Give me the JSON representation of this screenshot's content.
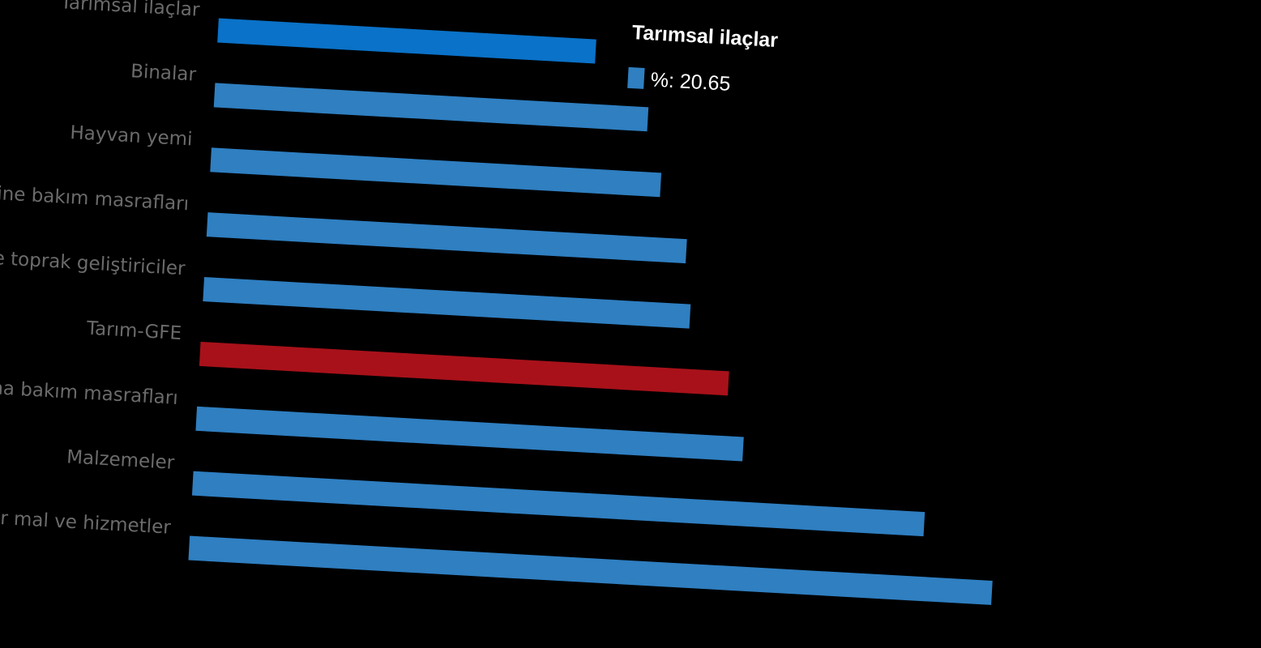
{
  "chart_data": {
    "type": "bar",
    "orientation": "horizontal",
    "categories": [
      "Tarımsal ilaçlar",
      "Binalar",
      "Hayvan yemi",
      "akine bakım masrafları",
      "ve toprak geliştiriciler",
      "Tarım-GFE",
      "Bina bakım masrafları",
      "Malzemeler",
      "ğer mal ve hizmetler"
    ],
    "values": [
      20.65,
      23.7,
      24.6,
      26.2,
      26.6,
      28.9,
      29.9,
      40.0,
      43.9
    ],
    "colors": [
      "#0a72c8",
      "#2f7fc1",
      "#2f7fc1",
      "#2f7fc1",
      "#2f7fc1",
      "#a8111a",
      "#2f7fc1",
      "#2f7fc1",
      "#2f7fc1"
    ],
    "xlim": [
      0,
      45
    ],
    "tooltip": {
      "category_index": 0,
      "label": "%:",
      "value": 20.65,
      "color": "#2f7fc1"
    }
  }
}
